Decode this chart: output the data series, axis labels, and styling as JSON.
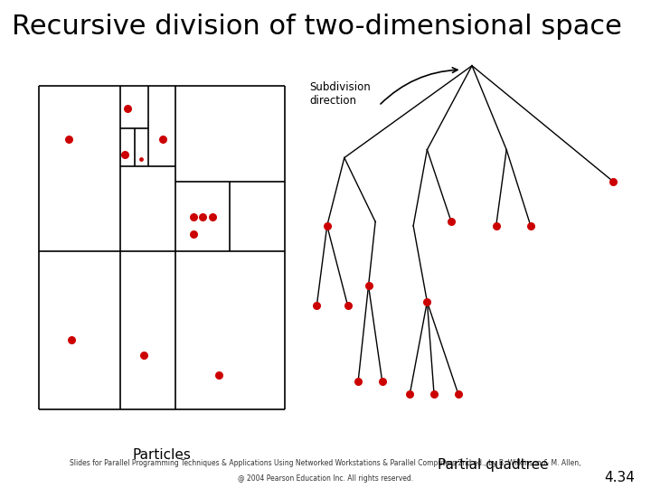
{
  "title": "Recursive division of two-dimensional space",
  "title_fontsize": 22,
  "bg_color": "#ffffff",
  "dot_color": "#cc0000",
  "dot_size": 30,
  "line_color": "#000000",
  "line_width": 1.2,
  "particles_label": "Particles",
  "tree_label": "Partial quadtree",
  "subdivision_label": "Subdivision\ndirection",
  "footer_line1": "Slides for Parallel Programming Techniques & Applications Using Networked Workstations & Parallel Computers 2nd ed., by B. Wilkinson & M. Allen,",
  "footer_line2": "@ 2004 Pearson Education Inc. All rights reserved.",
  "page_number": "4.34"
}
